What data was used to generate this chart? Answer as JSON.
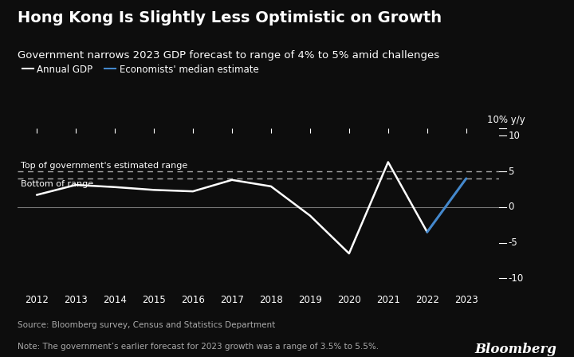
{
  "title": "Hong Kong Is Slightly Less Optimistic on Growth",
  "subtitle": "Government narrows 2023 GDP forecast to range of 4% to 5% amid challenges",
  "legend_items": [
    "Annual GDP",
    "Economists' median estimate"
  ],
  "ylabel": "10% y/y",
  "source_text": "Source: Bloomberg survey, Census and Statistics Department",
  "note_text": "Note: The government’s earlier forecast for 2023 growth was a range of 3.5% to 5.5%.",
  "bloomberg_label": "Bloomberg",
  "background_color": "#0d0d0d",
  "text_color": "#ffffff",
  "white_line_color": "#ffffff",
  "blue_line_color": "#4488cc",
  "dashed_line_color": "#aaaaaa",
  "zero_line_color": "#777777",
  "annual_gdp_years": [
    2012,
    2013,
    2014,
    2015,
    2016,
    2017,
    2018,
    2019,
    2020,
    2021,
    2022
  ],
  "annual_gdp_values": [
    1.7,
    3.1,
    2.8,
    2.4,
    2.2,
    3.8,
    2.9,
    -1.2,
    -6.5,
    6.3,
    -3.5
  ],
  "economist_years": [
    2022,
    2023
  ],
  "economist_values": [
    -3.5,
    4.0
  ],
  "top_range": 5.0,
  "bottom_range": 4.0,
  "ylim_min": -12,
  "ylim_max": 11,
  "yticks": [
    -10,
    -5,
    0,
    5,
    10
  ],
  "xlim_min": 2011.5,
  "xlim_max": 2023.85,
  "xticks": [
    2012,
    2013,
    2014,
    2015,
    2016,
    2017,
    2018,
    2019,
    2020,
    2021,
    2022,
    2023
  ],
  "top_range_label": "Top of government's estimated range",
  "bottom_range_label": "Bottom of range",
  "title_fontsize": 14,
  "subtitle_fontsize": 9.5,
  "axis_fontsize": 8.5,
  "label_fontsize": 8,
  "source_fontsize": 7.5,
  "bloomberg_fontsize": 12,
  "legend_fontsize": 8.5
}
